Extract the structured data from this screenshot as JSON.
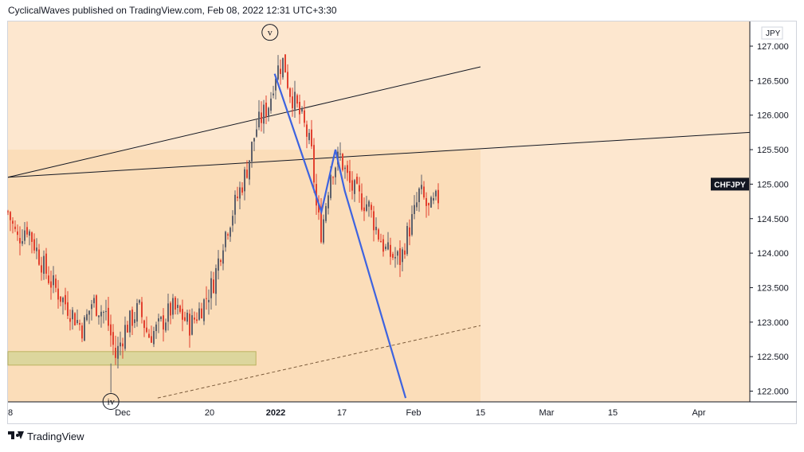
{
  "header": {
    "attribution": "CyclicalWaves published on TradingView.com, Feb 08, 2022 12:31 UTC+3:30"
  },
  "footer": {
    "brand": "TradingView",
    "logo_icon": "tradingview-logo-icon"
  },
  "colors": {
    "background_band": "#fde7cf",
    "highlight_band": "#fbddb9",
    "up_candle": "#5d606b",
    "down_candle": "#e2412f",
    "wave_line": "#3d63e0",
    "support_box": "#d9d69a",
    "support_border": "#b5ae57",
    "symbol_badge_bg": "#131722",
    "trendline": "#131722"
  },
  "chart_data": {
    "type": "candlestick",
    "symbol": "CHFJPY",
    "currency": "JPY",
    "ylim": [
      121.85,
      127.5
    ],
    "y_ticks": [
      "127.000",
      "126.500",
      "126.000",
      "125.500",
      "125.000",
      "124.500",
      "124.000",
      "123.500",
      "123.000",
      "122.500",
      "122.000"
    ],
    "x_ticks": [
      "8",
      "Dec",
      "20",
      "2022",
      "17",
      "Feb",
      "15",
      "Mar",
      "15",
      "Apr"
    ],
    "price_badge": "CHFJPY",
    "series": [
      {
        "type": "candlestick",
        "close_path": [
          [
            "2021-11-08",
            124.6
          ],
          [
            "2021-11-10",
            124.2
          ],
          [
            "2021-11-12",
            124.4
          ],
          [
            "2021-11-15",
            123.9
          ],
          [
            "2021-11-17",
            123.6
          ],
          [
            "2021-11-19",
            123.4
          ],
          [
            "2021-11-22",
            123.1
          ],
          [
            "2021-11-24",
            122.9
          ],
          [
            "2021-11-26",
            123.3
          ],
          [
            "2021-11-29",
            123.1
          ],
          [
            "2021-12-01",
            122.5
          ],
          [
            "2021-12-03",
            122.9
          ],
          [
            "2021-12-06",
            123.2
          ],
          [
            "2021-12-08",
            122.8
          ],
          [
            "2021-12-10",
            122.9
          ],
          [
            "2021-12-13",
            123.2
          ],
          [
            "2021-12-15",
            123.1
          ],
          [
            "2021-12-17",
            122.95
          ],
          [
            "2021-12-20",
            123.3
          ],
          [
            "2021-12-22",
            123.6
          ],
          [
            "2021-12-24",
            124.2
          ],
          [
            "2021-12-27",
            124.8
          ],
          [
            "2021-12-29",
            125.2
          ],
          [
            "2021-12-31",
            125.8
          ],
          [
            "2022-01-03",
            126.2
          ],
          [
            "2022-01-04",
            126.6
          ],
          [
            "2022-01-06",
            126.8
          ],
          [
            "2022-01-07",
            126.4
          ],
          [
            "2022-01-10",
            125.9
          ],
          [
            "2022-01-11",
            125.7
          ],
          [
            "2022-01-12",
            125.4
          ],
          [
            "2022-01-13",
            124.6
          ],
          [
            "2022-01-14",
            124.3
          ],
          [
            "2022-01-16",
            125.2
          ],
          [
            "2022-01-18",
            125.4
          ],
          [
            "2022-01-20",
            125.0
          ],
          [
            "2022-01-22",
            124.8
          ],
          [
            "2022-01-24",
            124.7
          ],
          [
            "2022-01-26",
            124.3
          ],
          [
            "2022-01-28",
            124.0
          ],
          [
            "2022-01-31",
            123.9
          ],
          [
            "2022-02-01",
            124.2
          ],
          [
            "2022-02-03",
            124.6
          ],
          [
            "2022-02-04",
            124.9
          ],
          [
            "2022-02-06",
            124.6
          ],
          [
            "2022-02-08",
            124.8
          ]
        ]
      },
      {
        "type": "line",
        "points": [
          [
            "2022-01-04",
            126.6
          ],
          [
            "2022-01-12",
            125.0
          ],
          [
            "2022-01-14",
            124.6
          ],
          [
            "2022-01-17",
            125.5
          ],
          [
            "2022-01-19",
            124.9
          ],
          [
            "2022-02-01",
            121.9
          ]
        ]
      },
      {
        "type": "line",
        "points": [
          [
            "2021-11-08",
            125.1
          ],
          [
            "2022-02-17",
            126.7
          ]
        ]
      },
      {
        "type": "line",
        "points": [
          [
            "2021-11-08",
            125.1
          ],
          [
            "2022-04-22",
            125.75
          ]
        ]
      },
      {
        "type": "dashed-line",
        "points": [
          [
            "2021-12-10",
            121.9
          ],
          [
            "2022-02-17",
            122.95
          ]
        ]
      }
    ],
    "annotations": [
      {
        "label": "v",
        "date": "2022-01-03",
        "price": 127.2
      },
      {
        "label": "iv",
        "date": "2021-11-30",
        "price": 121.85
      }
    ],
    "zones": [
      {
        "kind": "price-band",
        "from_date": "2021-11-08",
        "to_date": "2021-12-31",
        "low": 122.4,
        "high": 122.55
      }
    ]
  }
}
